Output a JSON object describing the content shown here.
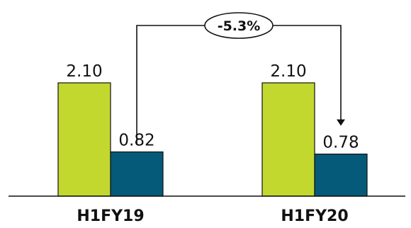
{
  "chart_data": {
    "type": "bar",
    "categories": [
      "H1FY19",
      "H1FY20"
    ],
    "series": [
      {
        "color": "#c3d82f",
        "values": [
          2.1,
          2.1
        ]
      },
      {
        "color": "#055979",
        "values": [
          0.82,
          0.78
        ]
      }
    ],
    "value_labels": [
      [
        "2.10",
        "2.10"
      ],
      [
        "0.82",
        "0.78"
      ]
    ],
    "ylim": [
      0,
      2.1
    ],
    "grid": false,
    "legend": "none",
    "annotation": {
      "text": "-5.3%",
      "from": {
        "category": "H1FY19",
        "series": 1
      },
      "to": {
        "category": "H1FY20",
        "series": 1
      }
    }
  }
}
